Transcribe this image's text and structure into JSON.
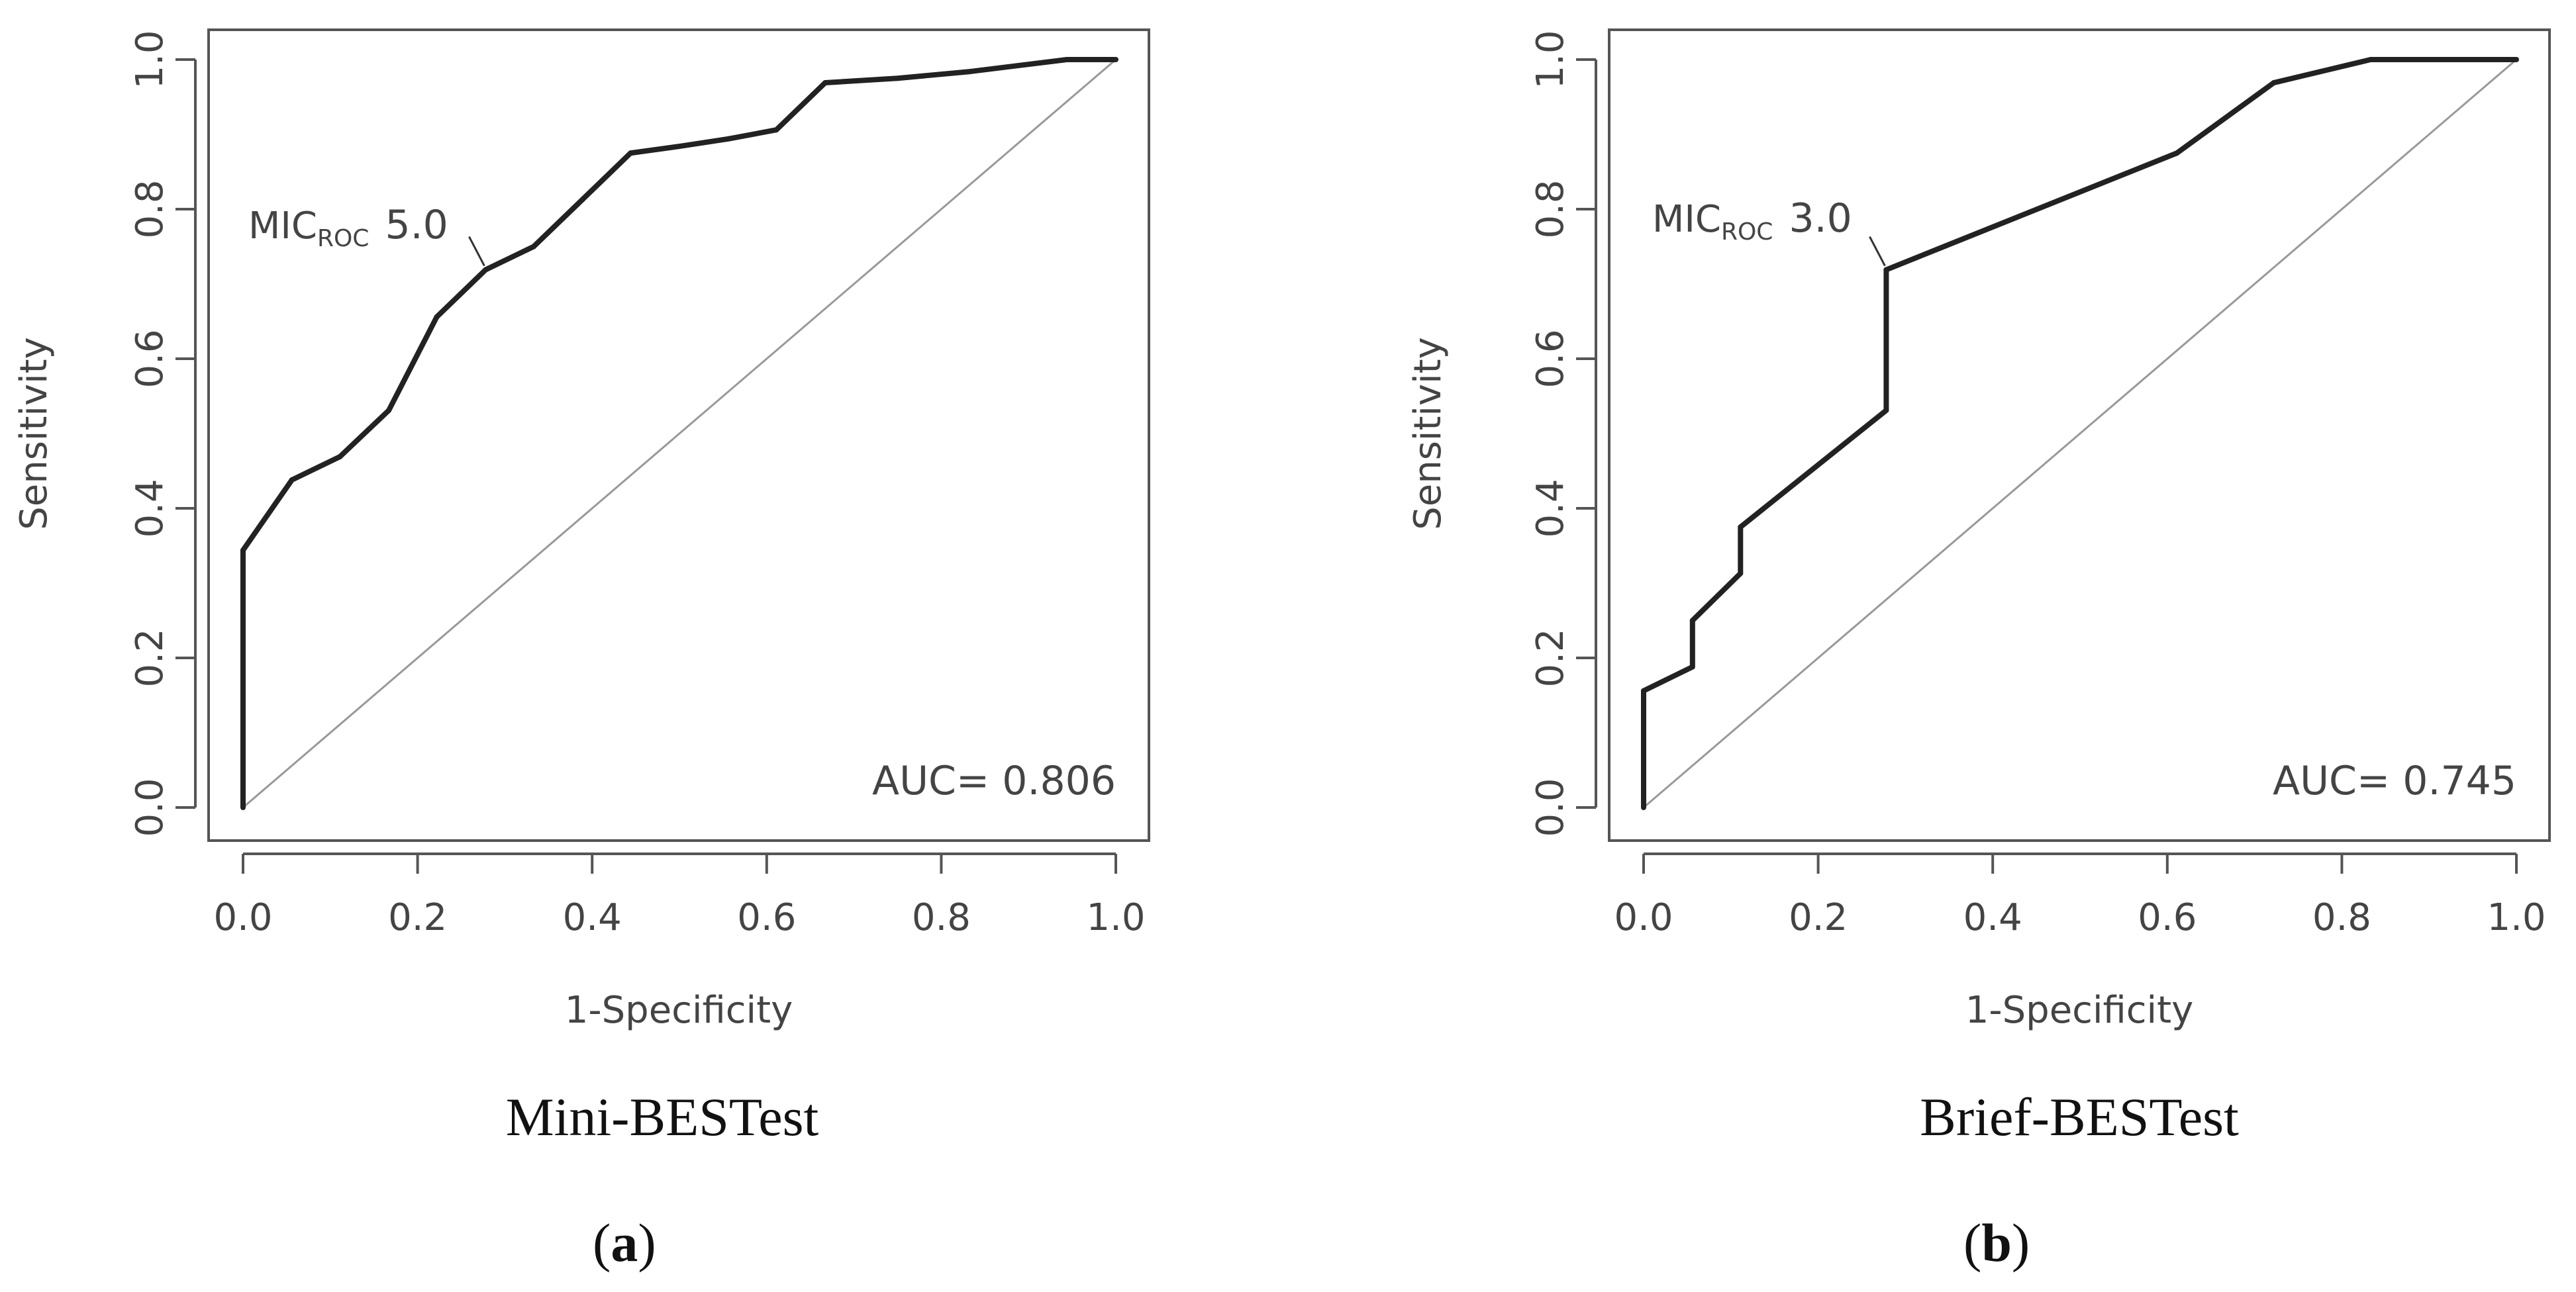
{
  "colors": {
    "frame": "#555555",
    "curve": "#222222",
    "diagonal": "#999999",
    "text": "#444444"
  },
  "chart_data": [
    {
      "type": "line",
      "panel_label": "a",
      "caption": "Mini-BESTest",
      "xlabel": "1-Specificity",
      "ylabel": "Sensitivity",
      "xlim": [
        0,
        1
      ],
      "ylim": [
        0,
        1
      ],
      "x_ticks": [
        "0.0",
        "0.2",
        "0.4",
        "0.6",
        "0.8",
        "1.0"
      ],
      "y_ticks": [
        "0.0",
        "0.2",
        "0.4",
        "0.6",
        "0.8",
        "1.0"
      ],
      "grid": false,
      "series": [
        {
          "name": "ROC",
          "x": [
            0,
            0,
            0.056,
            0.111,
            0.167,
            0.222,
            0.278,
            0.333,
            0.389,
            0.444,
            0.5,
            0.556,
            0.611,
            0.667,
            0.75,
            0.833,
            0.944,
            1.0
          ],
          "y": [
            0,
            0.344,
            0.438,
            0.469,
            0.531,
            0.656,
            0.719,
            0.75,
            0.813,
            0.875,
            0.884,
            0.894,
            0.906,
            0.969,
            0.975,
            0.984,
            1.0,
            1.0
          ]
        }
      ],
      "reference_line": {
        "x": [
          0,
          1
        ],
        "y": [
          0,
          1
        ]
      },
      "annotation": {
        "label": "MIC",
        "subscript": "ROC",
        "value": "5.0",
        "x": 0.278,
        "y": 0.719
      },
      "auc_label": "AUC= 0.806"
    },
    {
      "type": "line",
      "panel_label": "b",
      "caption": "Brief-BESTest",
      "xlabel": "1-Specificity",
      "ylabel": "Sensitivity",
      "xlim": [
        0,
        1
      ],
      "ylim": [
        0,
        1
      ],
      "x_ticks": [
        "0.0",
        "0.2",
        "0.4",
        "0.6",
        "0.8",
        "1.0"
      ],
      "y_ticks": [
        "0.0",
        "0.2",
        "0.4",
        "0.6",
        "0.8",
        "1.0"
      ],
      "grid": false,
      "series": [
        {
          "name": "ROC",
          "x": [
            0,
            0,
            0.056,
            0.056,
            0.111,
            0.111,
            0.278,
            0.278,
            0.611,
            0.722,
            0.833,
            1.0
          ],
          "y": [
            0,
            0.156,
            0.188,
            0.25,
            0.313,
            0.375,
            0.531,
            0.719,
            0.875,
            0.969,
            1.0,
            1.0
          ]
        }
      ],
      "reference_line": {
        "x": [
          0,
          1
        ],
        "y": [
          0,
          1
        ]
      },
      "annotation": {
        "label": "MIC",
        "subscript": "ROC",
        "value": "3.0",
        "x": 0.278,
        "y": 0.719
      },
      "auc_label": "AUC= 0.745"
    }
  ]
}
